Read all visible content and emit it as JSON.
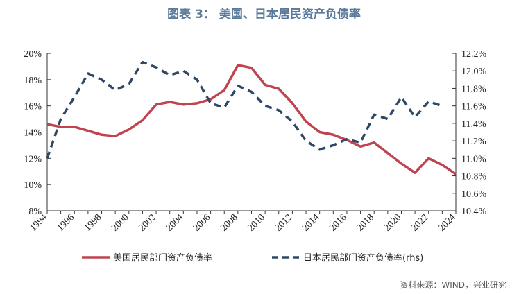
{
  "title": "图表 3： 美国、日本居民资产负债率",
  "source": "资料来源：WIND，兴业研究",
  "colors": {
    "us": "#c0444f",
    "jp": "#2f4866",
    "title": "#5b7a9b"
  },
  "chart_data": {
    "type": "line",
    "title": "图表 3： 美国、日本居民资产负债率",
    "x": [
      "1994",
      "1995",
      "1996",
      "1997",
      "1998",
      "1999",
      "2000",
      "2001",
      "2002",
      "2003",
      "2004",
      "2005",
      "2006",
      "2007",
      "2008",
      "2009",
      "2010",
      "2011",
      "2012",
      "2013",
      "2014",
      "2015",
      "2016",
      "2017",
      "2018",
      "2019",
      "2020",
      "2021",
      "2022",
      "2023",
      "2024"
    ],
    "x_tick_labels": [
      "1994",
      "1996",
      "1998",
      "2000",
      "2002",
      "2004",
      "2006",
      "2008",
      "2010",
      "2012",
      "2014",
      "2016",
      "2018",
      "2020",
      "2022",
      "2024"
    ],
    "y_left": {
      "ticks": [
        "8%",
        "10%",
        "12%",
        "14%",
        "16%",
        "18%",
        "20%"
      ],
      "ylim": [
        8,
        20
      ]
    },
    "y_right": {
      "ticks": [
        "10.4%",
        "10.6%",
        "10.8%",
        "11.0%",
        "11.2%",
        "11.4%",
        "11.6%",
        "11.8%",
        "12.0%",
        "12.2%"
      ],
      "ylim": [
        10.4,
        12.2
      ]
    },
    "series": [
      {
        "name": "美国居民部门资产负债率",
        "axis": "left",
        "style": "solid",
        "values": [
          14.6,
          14.4,
          14.4,
          14.1,
          13.8,
          13.7,
          14.2,
          14.9,
          16.1,
          16.3,
          16.1,
          16.2,
          16.5,
          17.2,
          19.1,
          18.9,
          17.6,
          17.3,
          16.2,
          14.8,
          14.0,
          13.8,
          13.4,
          12.9,
          13.2,
          12.4,
          11.6,
          10.9,
          12.0,
          11.5,
          10.8
        ]
      },
      {
        "name": "日本居民部门资产负债率(rhs)",
        "axis": "right",
        "style": "dashed",
        "values": [
          11.0,
          11.45,
          11.7,
          11.97,
          11.9,
          11.78,
          11.85,
          12.1,
          12.04,
          11.95,
          12.0,
          11.9,
          11.63,
          11.58,
          11.83,
          11.76,
          11.6,
          11.55,
          11.42,
          11.2,
          11.1,
          11.15,
          11.22,
          11.18,
          11.5,
          11.45,
          11.7,
          11.47,
          11.65,
          11.6,
          null
        ]
      }
    ],
    "grid": false,
    "legend_position": "bottom"
  }
}
